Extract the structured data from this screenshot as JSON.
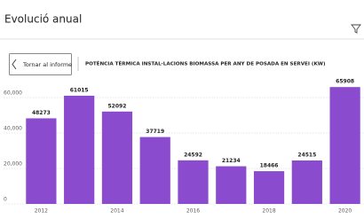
{
  "header": {
    "title": "Evolució anual",
    "back_button": "Tornar al informe"
  },
  "chart_data": {
    "type": "bar",
    "title": "POTÈNCIA TÈRMICA INSTAL·LACIONS BIOMASSA PER ANY DE POSADA EN SERVEI (KW)",
    "categories": [
      "2012",
      null,
      "2014",
      null,
      "2016",
      null,
      "2018",
      null,
      "2020"
    ],
    "values": [
      48273,
      61015,
      52092,
      37719,
      24592,
      21234,
      18466,
      24515,
      65908
    ],
    "color": "#8a4bcf",
    "ylim": [
      0,
      68000
    ],
    "yticks": [
      0,
      {
        "value": 20000,
        "label": "20,000"
      },
      {
        "value": 40000,
        "label": "40,000"
      },
      {
        "value": 60000,
        "label": "60,000"
      }
    ],
    "grid": true
  }
}
